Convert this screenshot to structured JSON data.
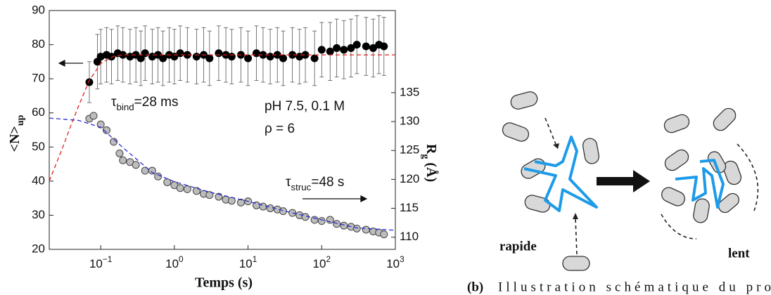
{
  "chart_data": {
    "type": "scatter",
    "xlabel": "Temps (s)",
    "ylabel": "<N>_{up}",
    "y2label": "R_{g} (Å)",
    "xscale": "log",
    "xlim": [
      0.02,
      1000
    ],
    "xticks": [
      {
        "value": 0.1,
        "label": "10^{−1}"
      },
      {
        "value": 1,
        "label": "10^{0}"
      },
      {
        "value": 10,
        "label": "10^{1}"
      },
      {
        "value": 100,
        "label": "10^{2}"
      },
      {
        "value": 1000,
        "label": "10^{3}"
      }
    ],
    "ylim": [
      20,
      90
    ],
    "yticks": [
      20,
      30,
      40,
      50,
      60,
      70,
      80,
      90
    ],
    "y2lim": [
      107.9,
      149.2
    ],
    "y2ticks": [
      110,
      115,
      120,
      125,
      130,
      135
    ],
    "annotations": [
      {
        "text": "τ_{bind}=28 ms",
        "color": "#e0201b"
      },
      {
        "text": "pH 7.5, 0.1 M",
        "color": "#111111"
      },
      {
        "text": "ρ = 6",
        "color": "#111111"
      },
      {
        "text": "τ_{struc}=48 s",
        "color": "#2a2ad8"
      }
    ],
    "series": [
      {
        "color": "#000000",
        "marker": "circle",
        "x": [
          0.07,
          0.09,
          0.1,
          0.12,
          0.14,
          0.17,
          0.2,
          0.25,
          0.3,
          0.35,
          0.4,
          0.5,
          0.6,
          0.7,
          0.85,
          1,
          1.2,
          1.5,
          2,
          2.5,
          3,
          4,
          5,
          6,
          8,
          10,
          13,
          16,
          20,
          25,
          30,
          40,
          50,
          60,
          80,
          100,
          130,
          160,
          200,
          250,
          300,
          400,
          500,
          600,
          700
        ],
        "values": [
          69,
          75,
          76.5,
          77,
          76.5,
          77.5,
          77,
          76.5,
          77,
          76,
          77.5,
          76.5,
          77,
          76,
          77,
          76.5,
          77.5,
          77,
          76.5,
          77,
          76,
          77.5,
          77,
          76.5,
          77,
          76,
          77.5,
          77,
          76.5,
          77,
          76,
          77,
          76.5,
          77,
          76,
          78.5,
          78,
          79,
          78.5,
          79,
          80,
          79.5,
          79,
          80,
          79.5
        ],
        "errors": [
          6,
          8,
          8,
          8,
          8,
          8,
          8,
          8,
          8,
          8,
          8,
          8,
          8,
          8,
          8,
          8,
          8,
          8,
          8,
          8,
          8,
          8,
          8,
          8,
          8,
          8,
          8,
          8,
          8,
          8,
          8,
          8,
          8,
          8,
          8,
          8,
          8.5,
          8.5,
          8.5,
          8.5,
          8.5,
          8.5,
          8.5,
          8.5,
          8.5
        ]
      },
      {
        "color": "#bdbdbd",
        "marker": "circle",
        "axis": "y2",
        "x": [
          0.07,
          0.08,
          0.1,
          0.12,
          0.15,
          0.18,
          0.2,
          0.25,
          0.3,
          0.4,
          0.5,
          0.6,
          0.8,
          1,
          1.2,
          1.5,
          2,
          2.5,
          3,
          4,
          5,
          6,
          8,
          10,
          13,
          16,
          20,
          25,
          30,
          40,
          50,
          60,
          80,
          100,
          130,
          160,
          200,
          250,
          300,
          400,
          500,
          600,
          700
        ],
        "values": [
          130.5,
          131,
          129.5,
          128.5,
          126.5,
          124.5,
          123.3,
          123,
          122.5,
          121.5,
          121.5,
          120.5,
          119.5,
          119,
          118.5,
          118.3,
          118,
          117.5,
          117.3,
          117,
          116.5,
          116.3,
          116,
          116.2,
          115.5,
          115.3,
          115,
          114.8,
          114.5,
          114.2,
          113.8,
          113.5,
          113,
          112.8,
          113,
          112.3,
          112,
          111.8,
          111.5,
          111.3,
          111,
          110.8,
          110.5
        ]
      },
      {
        "color": "#e0201b",
        "line": "dashed",
        "x": [
          0.02,
          0.03,
          0.04,
          0.05,
          0.07,
          0.1,
          0.15,
          0.2,
          1,
          10,
          100,
          1000
        ],
        "values": [
          40,
          49.5,
          56.7,
          62,
          69.5,
          74.5,
          76.6,
          77,
          77,
          77,
          77,
          77
        ]
      },
      {
        "color": "#2a2ad8",
        "line": "dashed",
        "axis": "y2",
        "x": [
          0.02,
          0.05,
          0.1,
          0.2,
          0.5,
          1,
          3,
          10,
          30,
          100,
          300,
          1000
        ],
        "values": [
          130.6,
          130.2,
          129,
          125.5,
          121.2,
          119.6,
          117.8,
          116.2,
          114.6,
          113,
          111.6,
          111.2
        ]
      }
    ]
  },
  "diagram": {
    "fast_label": "rapide",
    "slow_label": "lent",
    "caption_tag": "(b)",
    "caption": "Illustration schématique du pro"
  }
}
